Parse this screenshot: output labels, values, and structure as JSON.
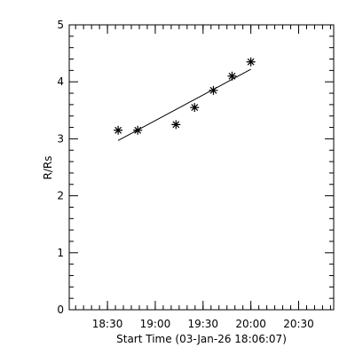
{
  "chart_data": {
    "type": "scatter",
    "xlabel": "Start Time (03-Jan-26 18:06:07)",
    "ylabel": "R/Rs",
    "x": [
      1116.7,
      1129,
      1153,
      1164.7,
      1176.5,
      1188.2,
      1200
    ],
    "values": [
      3.15,
      3.15,
      3.25,
      3.55,
      3.85,
      4.1,
      4.35
    ],
    "marker": "*",
    "color": "#000000",
    "fit": {
      "x": [
        1116.7,
        1200
      ],
      "values": [
        2.97,
        4.22
      ]
    },
    "xlim": [
      1086,
      1252
    ],
    "ylim": [
      0,
      5
    ],
    "xticks": [
      {
        "value": 1110,
        "label": "18:30"
      },
      {
        "value": 1140,
        "label": "19:00"
      },
      {
        "value": 1170,
        "label": "19:30"
      },
      {
        "value": 1200,
        "label": "20:00"
      },
      {
        "value": 1230,
        "label": "20:30"
      }
    ],
    "yticks": [
      0,
      1,
      2,
      3,
      4,
      5
    ]
  }
}
